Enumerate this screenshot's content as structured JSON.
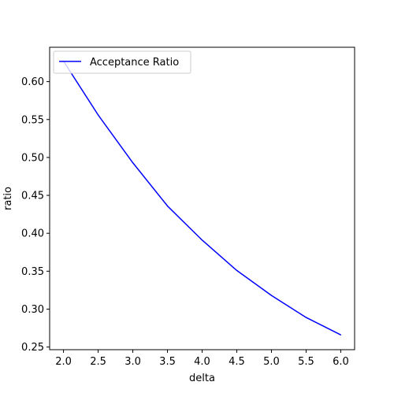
{
  "chart_data": {
    "type": "line",
    "xlabel": "delta",
    "ylabel": "ratio",
    "xlim": [
      1.8,
      6.2
    ],
    "ylim": [
      0.2465,
      0.6453
    ],
    "x_ticks": [
      2.0,
      2.5,
      3.0,
      3.5,
      4.0,
      4.5,
      5.0,
      5.5,
      6.0
    ],
    "x_tick_labels": [
      "2.0",
      "2.5",
      "3.0",
      "3.5",
      "4.0",
      "4.5",
      "5.0",
      "5.5",
      "6.0"
    ],
    "y_ticks": [
      0.25,
      0.3,
      0.35,
      0.4,
      0.45,
      0.5,
      0.55,
      0.6
    ],
    "y_tick_labels": [
      "0.25",
      "0.30",
      "0.35",
      "0.40",
      "0.45",
      "0.50",
      "0.55",
      "0.60"
    ],
    "grid": false,
    "legend_position": "upper-left",
    "series": [
      {
        "name": "Acceptance Ratio",
        "color": "#0000ff",
        "x": [
          2.0,
          2.5,
          3.0,
          3.5,
          4.0,
          4.5,
          5.0,
          5.5,
          6.0
        ],
        "y": [
          0.627,
          0.556,
          0.493,
          0.436,
          0.391,
          0.351,
          0.318,
          0.289,
          0.266
        ]
      }
    ]
  }
}
